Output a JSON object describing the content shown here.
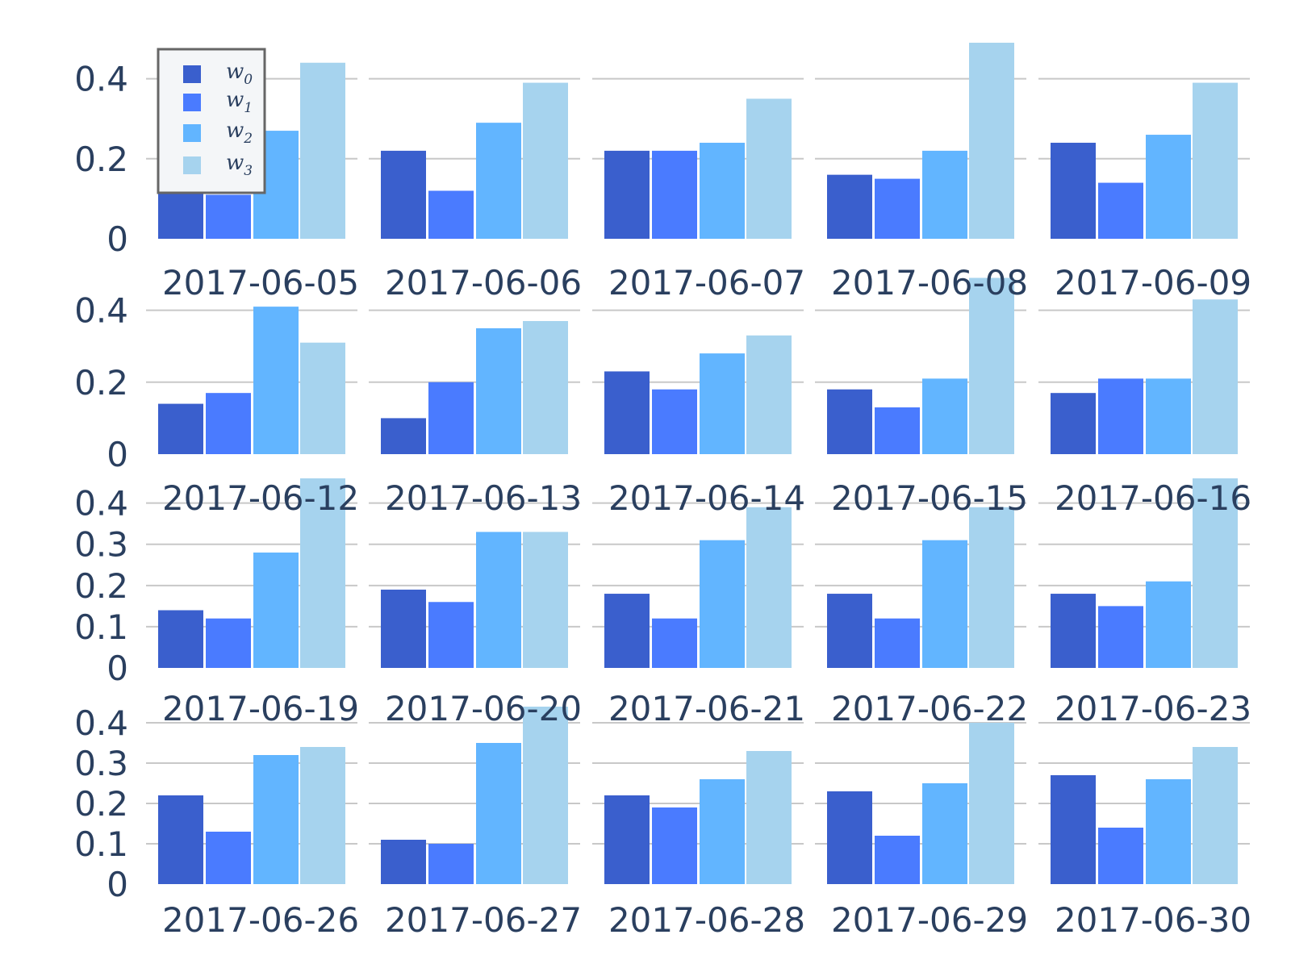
{
  "chart_data": {
    "type": "bar",
    "layout": "small-multiples",
    "grid": true,
    "legend_position": "top-left",
    "colors": [
      "#3a5fcd",
      "#4a7bff",
      "#62b5ff",
      "#a6d3ee"
    ],
    "series": [
      {
        "name": "w",
        "sub": "0"
      },
      {
        "name": "w",
        "sub": "1"
      },
      {
        "name": "w",
        "sub": "2"
      },
      {
        "name": "w",
        "sub": "3"
      }
    ],
    "rows": [
      {
        "ylim": [
          0,
          0.5
        ],
        "yticks": [
          0,
          0.2,
          0.4
        ],
        "ytick_labels": [
          "0",
          "0.2",
          "0.4"
        ],
        "panels": [
          {
            "date": "2017-06-05",
            "values": [
              0.2,
              0.11,
              0.27,
              0.44
            ]
          },
          {
            "date": "2017-06-06",
            "values": [
              0.22,
              0.12,
              0.29,
              0.39
            ]
          },
          {
            "date": "2017-06-07",
            "values": [
              0.22,
              0.22,
              0.24,
              0.35
            ]
          },
          {
            "date": "2017-06-08",
            "values": [
              0.16,
              0.15,
              0.22,
              0.49
            ]
          },
          {
            "date": "2017-06-09",
            "values": [
              0.24,
              0.14,
              0.26,
              0.39
            ]
          }
        ]
      },
      {
        "ylim": [
          0,
          0.5
        ],
        "yticks": [
          0,
          0.2,
          0.4
        ],
        "ytick_labels": [
          "0",
          "0.2",
          "0.4"
        ],
        "panels": [
          {
            "date": "2017-06-12",
            "values": [
              0.14,
              0.17,
              0.41,
              0.31
            ]
          },
          {
            "date": "2017-06-13",
            "values": [
              0.1,
              0.2,
              0.35,
              0.37
            ]
          },
          {
            "date": "2017-06-14",
            "values": [
              0.23,
              0.18,
              0.28,
              0.33
            ]
          },
          {
            "date": "2017-06-15",
            "values": [
              0.18,
              0.13,
              0.21,
              0.49
            ]
          },
          {
            "date": "2017-06-16",
            "values": [
              0.17,
              0.21,
              0.21,
              0.43
            ]
          }
        ]
      },
      {
        "ylim": [
          0,
          0.46
        ],
        "yticks": [
          0,
          0.1,
          0.2,
          0.3,
          0.4
        ],
        "ytick_labels": [
          "0",
          "0.1",
          "0.2",
          "0.3",
          "0.4"
        ],
        "panels": [
          {
            "date": "2017-06-19",
            "values": [
              0.14,
              0.12,
              0.28,
              0.46
            ]
          },
          {
            "date": "2017-06-20",
            "values": [
              0.19,
              0.16,
              0.33,
              0.33
            ]
          },
          {
            "date": "2017-06-21",
            "values": [
              0.18,
              0.12,
              0.31,
              0.39
            ]
          },
          {
            "date": "2017-06-22",
            "values": [
              0.18,
              0.12,
              0.31,
              0.39
            ]
          },
          {
            "date": "2017-06-23",
            "values": [
              0.18,
              0.15,
              0.21,
              0.46
            ]
          }
        ]
      },
      {
        "ylim": [
          0,
          0.44
        ],
        "yticks": [
          0,
          0.1,
          0.2,
          0.3,
          0.4
        ],
        "ytick_labels": [
          "0",
          "0.1",
          "0.2",
          "0.3",
          "0.4"
        ],
        "panels": [
          {
            "date": "2017-06-26",
            "values": [
              0.22,
              0.13,
              0.32,
              0.34
            ]
          },
          {
            "date": "2017-06-27",
            "values": [
              0.11,
              0.1,
              0.35,
              0.44
            ]
          },
          {
            "date": "2017-06-28",
            "values": [
              0.22,
              0.19,
              0.26,
              0.33
            ]
          },
          {
            "date": "2017-06-29",
            "values": [
              0.23,
              0.12,
              0.25,
              0.4
            ]
          },
          {
            "date": "2017-06-30",
            "values": [
              0.27,
              0.14,
              0.26,
              0.34
            ]
          }
        ]
      }
    ]
  }
}
